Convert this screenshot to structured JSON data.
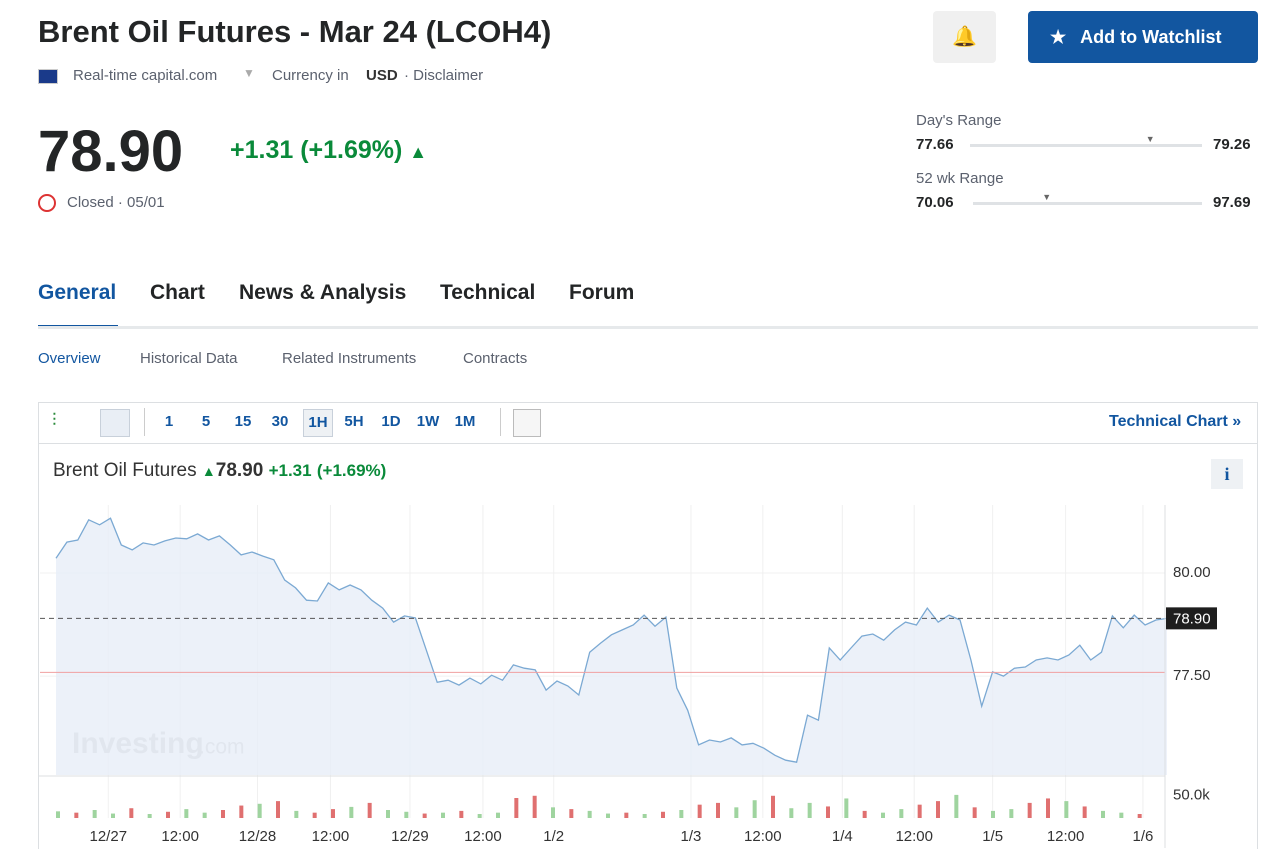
{
  "header": {
    "title": "Brent Oil Futures - Mar 24 (LCOH4)",
    "source": "Real-time capital.com",
    "currency_label": "Currency in",
    "currency": "USD",
    "disclaimer": "· Disclaimer",
    "watchlist_button": "Add to Watchlist"
  },
  "quote": {
    "price": "78.90",
    "change": "+1.31 (+1.69%)",
    "status": "Closed · 05/01"
  },
  "ranges": [
    {
      "label": "Day's Range",
      "low": 77.66,
      "high": 79.26,
      "current": 78.9
    },
    {
      "label": "52 wk Range",
      "low": 70.06,
      "high": 97.69,
      "current": 78.9
    }
  ],
  "tabs": [
    "General",
    "Chart",
    "News & Analysis",
    "Technical",
    "Forum"
  ],
  "subtabs": [
    "Overview",
    "Historical Data",
    "Related Instruments",
    "Contracts"
  ],
  "toolbar": {
    "intervals": [
      "1",
      "5",
      "15",
      "30",
      "1H",
      "5H",
      "1D",
      "1W",
      "1M"
    ],
    "active_interval": "1H",
    "technical_link": "Technical Chart »"
  },
  "chart_data": {
    "type": "line",
    "legend_name": "Brent Oil Futures",
    "legend_price": "78.90",
    "legend_change": "+1.31",
    "legend_percent": "(+1.69%)",
    "info": "i",
    "watermark": "Investing",
    "watermark_suffix": ".com",
    "color": "#7ba9d3",
    "fill": "#e7eef7",
    "values": [
      80.36,
      80.75,
      80.8,
      81.29,
      81.17,
      81.33,
      80.68,
      80.56,
      80.73,
      80.68,
      80.78,
      80.85,
      80.83,
      80.95,
      80.8,
      80.9,
      80.68,
      80.44,
      80.51,
      80.41,
      80.32,
      79.83,
      79.64,
      79.34,
      79.32,
      79.76,
      79.59,
      79.71,
      79.59,
      79.34,
      79.15,
      78.81,
      78.96,
      78.91,
      78.13,
      77.35,
      77.4,
      77.28,
      77.45,
      77.31,
      77.52,
      77.4,
      77.77,
      77.69,
      77.65,
      77.16,
      77.38,
      77.26,
      77.04,
      78.08,
      78.3,
      78.5,
      78.62,
      78.74,
      78.98,
      78.71,
      78.93,
      77.21,
      76.67,
      75.83,
      75.95,
      75.9,
      76.0,
      75.83,
      75.87,
      75.75,
      75.58,
      75.46,
      75.41,
      76.55,
      76.43,
      78.18,
      77.89,
      78.18,
      78.47,
      78.52,
      78.37,
      78.62,
      78.81,
      78.74,
      79.15,
      78.81,
      78.98,
      78.86,
      77.89,
      76.77,
      77.6,
      77.5,
      77.69,
      77.72,
      77.89,
      77.94,
      77.89,
      78.01,
      78.25,
      77.89,
      78.08,
      78.96,
      78.67,
      78.98,
      78.74,
      78.86,
      78.9
    ],
    "xlim": [
      0,
      101
    ],
    "xticks": [
      {
        "value": 4.8,
        "label": "12/27"
      },
      {
        "value": 11.4,
        "label": "12:00"
      },
      {
        "value": 18.5,
        "label": "12/28"
      },
      {
        "value": 25.2,
        "label": "12:00"
      },
      {
        "value": 32.5,
        "label": "12/29"
      },
      {
        "value": 39.2,
        "label": "12:00"
      },
      {
        "value": 45.7,
        "label": "1/2"
      },
      {
        "value": 58.3,
        "label": "1/3"
      },
      {
        "value": 64.9,
        "label": "12:00"
      },
      {
        "value": 72.2,
        "label": "1/4"
      },
      {
        "value": 78.8,
        "label": "12:00"
      },
      {
        "value": 86,
        "label": "1/5"
      },
      {
        "value": 92.7,
        "label": "12:00"
      },
      {
        "value": 99.8,
        "label": "1/6"
      }
    ],
    "ylim": [
      75.1,
      81.65
    ],
    "yticks": [
      {
        "value": 80,
        "label": "80.00"
      },
      {
        "value": 77.5,
        "label": "77.50"
      }
    ],
    "last_price": {
      "value": 78.9,
      "label": "78.90"
    },
    "prev_close": 77.59,
    "prev_close_color": "#f0a0a0",
    "grid": true,
    "volume": {
      "values": [
        15,
        12,
        18,
        10,
        22,
        9,
        14,
        20,
        12,
        18,
        28,
        32,
        38,
        16,
        12,
        20,
        25,
        34,
        18,
        14,
        10,
        12,
        16,
        9,
        12,
        45,
        50,
        24,
        20,
        16,
        10,
        12,
        9,
        14,
        18,
        30,
        34,
        24,
        40,
        50,
        22,
        34,
        26,
        44,
        16,
        12,
        20,
        30,
        38,
        52,
        24,
        16,
        20,
        34,
        44,
        38,
        26,
        16,
        12,
        9
      ],
      "up": [
        true,
        false,
        true,
        true,
        false,
        true,
        false,
        true,
        true,
        false,
        false,
        true,
        false,
        true,
        false,
        false,
        true,
        false,
        true,
        true,
        false,
        true,
        false,
        true,
        true,
        false,
        false,
        true,
        false,
        true,
        true,
        false,
        true,
        false,
        true,
        false,
        false,
        true,
        true,
        false,
        true,
        true,
        false,
        true,
        false,
        true,
        true,
        false,
        false,
        true,
        false,
        true,
        true,
        false,
        false,
        true,
        false,
        true,
        true,
        false
      ],
      "up_color": "#9fd49f",
      "down_color": "#e07070",
      "ylim": [
        0,
        90
      ],
      "yticks": [
        {
          "value": 50,
          "label": "50.0k"
        }
      ]
    }
  }
}
